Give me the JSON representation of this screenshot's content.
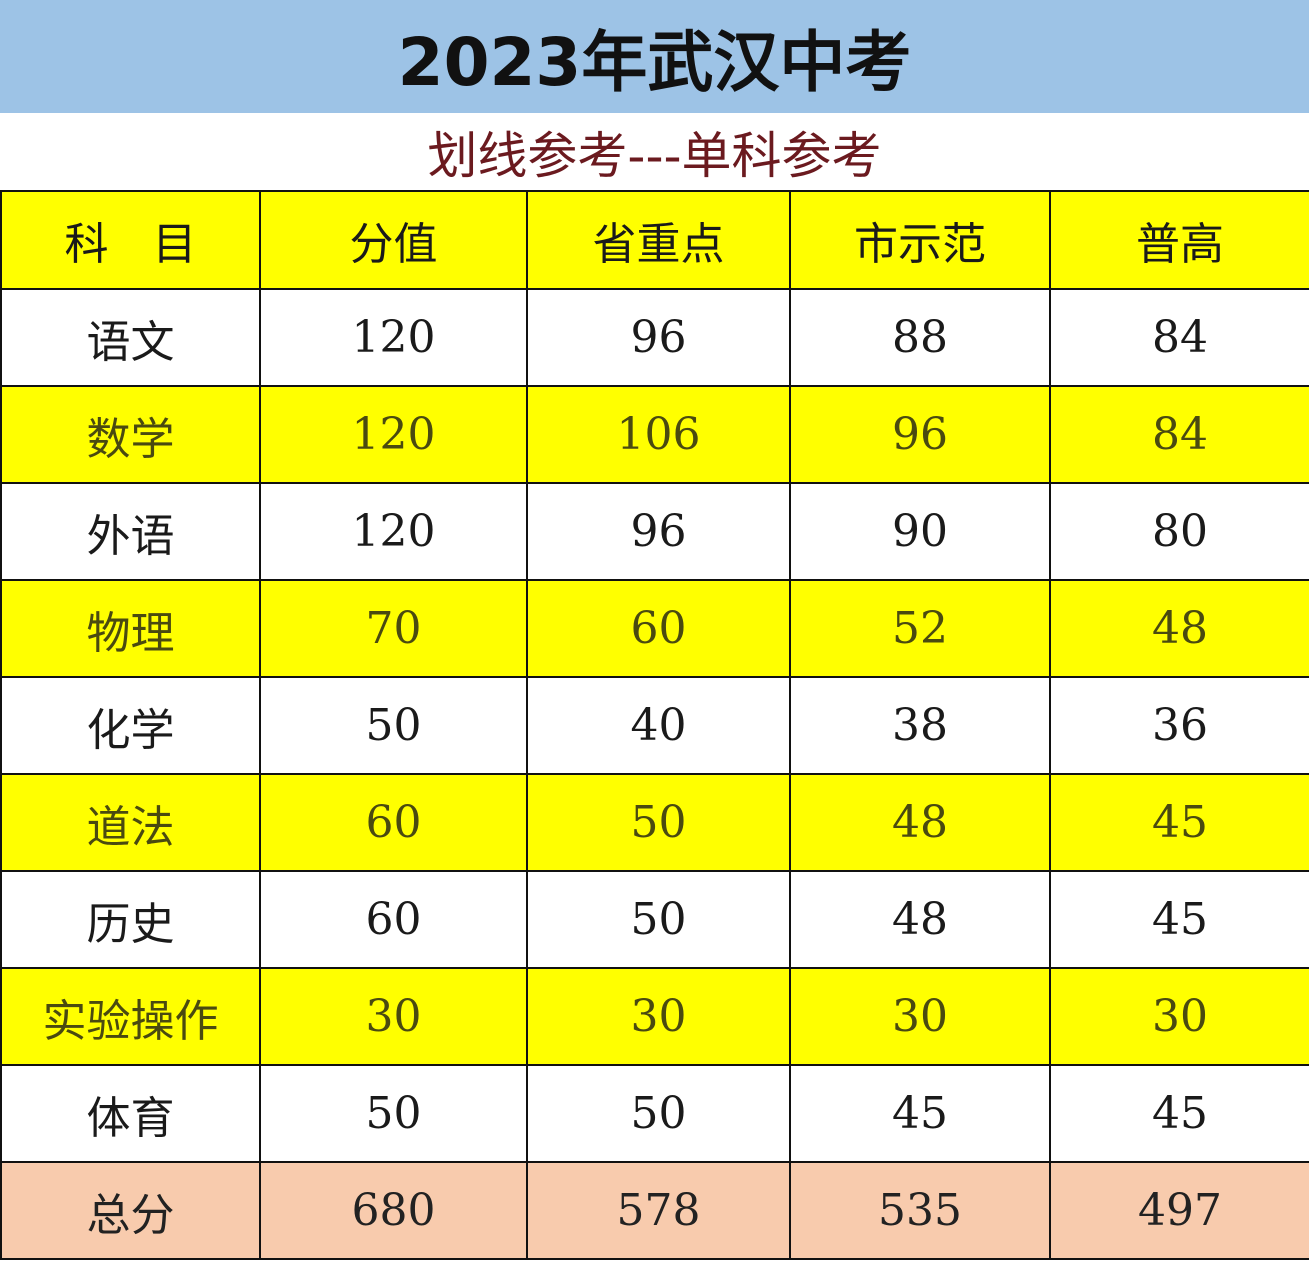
{
  "title": "2023年武汉中考",
  "subtitle": "划线参考---单科参考",
  "colors": {
    "title_bg": "#9dc3e6",
    "header_bg": "#ffff00",
    "highlight_row_bg": "#ffff00",
    "total_row_bg": "#f8cbad",
    "subtitle_text": "#6b1a1f"
  },
  "headers": [
    "科　目",
    "分值",
    "省重点",
    "市示范",
    "普高"
  ],
  "rows": [
    {
      "cells": [
        "语文",
        "120",
        "96",
        "88",
        "84"
      ],
      "highlight": false
    },
    {
      "cells": [
        "数学",
        "120",
        "106",
        "96",
        "84"
      ],
      "highlight": true
    },
    {
      "cells": [
        "外语",
        "120",
        "96",
        "90",
        "80"
      ],
      "highlight": false
    },
    {
      "cells": [
        "物理",
        "70",
        "60",
        "52",
        "48"
      ],
      "highlight": true
    },
    {
      "cells": [
        "化学",
        "50",
        "40",
        "38",
        "36"
      ],
      "highlight": false
    },
    {
      "cells": [
        "道法",
        "60",
        "50",
        "48",
        "45"
      ],
      "highlight": true
    },
    {
      "cells": [
        "历史",
        "60",
        "50",
        "48",
        "45"
      ],
      "highlight": false
    },
    {
      "cells": [
        "实验操作",
        "30",
        "30",
        "30",
        "30"
      ],
      "highlight": true
    },
    {
      "cells": [
        "体育",
        "50",
        "50",
        "45",
        "45"
      ],
      "highlight": false
    }
  ],
  "total": [
    "总分",
    "680",
    "578",
    "535",
    "497"
  ]
}
